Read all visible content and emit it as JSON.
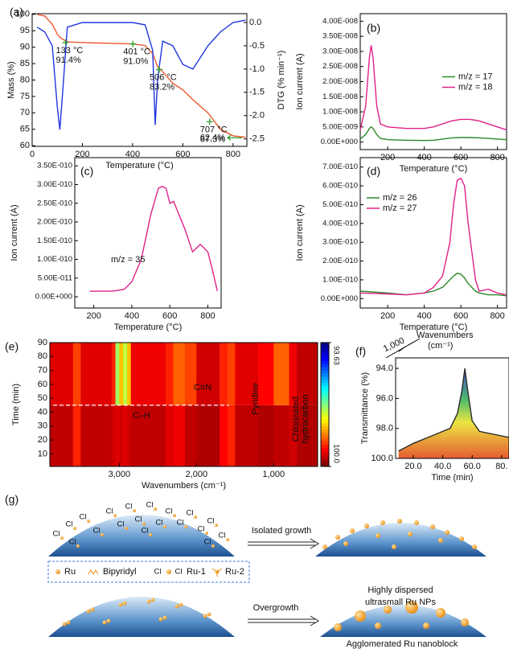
{
  "chart_data": [
    {
      "type": "line",
      "panel_label": "(a)",
      "xlabel": "Temperature (°C)",
      "ylabel": "Mass (%)",
      "y2label": "DTG (% min⁻¹)",
      "x": [
        20,
        50,
        80,
        100,
        110,
        120,
        140,
        200,
        300,
        400,
        450,
        480,
        490,
        500,
        520,
        560,
        600,
        640,
        700,
        750,
        800,
        850
      ],
      "xlim": [
        0,
        855
      ],
      "xticks": [
        0,
        200,
        400,
        600,
        800
      ],
      "ylim": [
        59.8,
        100.2
      ],
      "yticks": [
        60,
        65,
        70,
        75,
        80,
        85,
        90,
        95,
        100
      ],
      "y2lim": [
        -2.66,
        0.19
      ],
      "y2ticks": [
        {
          "value": 0,
          "label": "0.0"
        },
        -0.5,
        {
          "value": -1,
          "label": "-1.0"
        },
        -1.5,
        {
          "value": -2,
          "label": "-2.0"
        },
        -2.5
      ],
      "series": [
        {
          "color": "#f0562a",
          "values": [
            100,
            99.5,
            97,
            94,
            93,
            92.5,
            91.6,
            91.4,
            91.2,
            91.0,
            90.5,
            88,
            86,
            84,
            82.5,
            79,
            77,
            74,
            70,
            65,
            63,
            62.6
          ]
        },
        {
          "color": "#2035e0",
          "axis": "y2",
          "values": [
            -0.1,
            -0.2,
            -0.5,
            -1.8,
            -2.3,
            -1.6,
            -0.1,
            0.0,
            0.0,
            0.0,
            -0.05,
            -0.6,
            -2.2,
            -1.2,
            -0.4,
            -0.5,
            -0.9,
            -1.0,
            -0.5,
            -0.2,
            0.0,
            0.05
          ]
        }
      ],
      "annotation_color": "#2a9d2a",
      "annotations": [
        {
          "x": 133,
          "y": 91.4,
          "x_label": "133 °C",
          "y_label": "91.4%"
        },
        {
          "x": 401,
          "y": 91.0,
          "x_label": "401 °C",
          "y_label": "91.0%"
        },
        {
          "x": 506,
          "y": 83.2,
          "x_label": "506 °C",
          "y_label": "83.2%"
        },
        {
          "x": 707,
          "y": 67.3,
          "x_label": "707 °C",
          "y_label": "67.3%"
        },
        {
          "y": 62.4,
          "y_label": "62.4%"
        }
      ]
    },
    {
      "type": "line",
      "panel_label": "(b)",
      "xlabel": "Temperature (°C)",
      "ylabel": "Ion current (A)",
      "legend": "right",
      "x": [
        50,
        80,
        100,
        110,
        120,
        140,
        160,
        200,
        300,
        400,
        450,
        500,
        550,
        600,
        650,
        700,
        750,
        800,
        850
      ],
      "xlim": [
        50,
        850
      ],
      "xticks": [
        200,
        400,
        600,
        800
      ],
      "ylim": [
        -2.5e-09,
        4.25e-08
      ],
      "yticks": [
        {
          "value": 0,
          "label": "0.00E+000"
        },
        {
          "value": 5e-09,
          "label": "5.00E-009"
        },
        {
          "value": 1e-08,
          "label": "1.00E-008"
        },
        {
          "value": 1.5e-08,
          "label": "1.50E-008"
        },
        {
          "value": 2e-08,
          "label": "2.00E-008"
        },
        {
          "value": 2.5e-08,
          "label": "2.50E-008"
        },
        {
          "value": 3e-08,
          "label": "3.00E-008"
        },
        {
          "value": 3.5e-08,
          "label": "3.50E-008"
        },
        {
          "value": 4e-08,
          "label": "4.00E-008"
        }
      ],
      "series": [
        {
          "name": "m/z = 17",
          "color": "#2a8a2a",
          "values": [
            1e-09,
            2.5e-09,
            4.5e-09,
            5e-09,
            4.5e-09,
            2.5e-09,
            1.2e-09,
            8e-10,
            6e-10,
            5e-10,
            6e-10,
            1e-09,
            1.4e-09,
            1.5e-09,
            1.5e-09,
            1.4e-09,
            1.2e-09,
            1e-09,
            8e-10
          ]
        },
        {
          "name": "m/z = 18",
          "color": "#e0218a",
          "values": [
            4e-09,
            1.2e-08,
            2.8e-08,
            3.2e-08,
            2.8e-08,
            1.2e-08,
            6e-09,
            5e-09,
            4.5e-09,
            4.5e-09,
            5e-09,
            6e-09,
            7e-09,
            7.5e-09,
            7.5e-09,
            7e-09,
            6e-09,
            5e-09,
            4e-09
          ]
        }
      ]
    },
    {
      "type": "line",
      "panel_label": "(c)",
      "xlabel": "Temperature (°C)",
      "ylabel": "Ion current (A)",
      "legend": "lower left",
      "x": [
        180,
        300,
        360,
        400,
        450,
        500,
        540,
        560,
        580,
        600,
        620,
        640,
        680,
        700,
        720,
        760,
        800,
        830,
        850
      ],
      "xlim": [
        100,
        870
      ],
      "xticks": [
        200,
        400,
        600,
        800
      ],
      "ylim": [
        -3e-11,
        3.72e-10
      ],
      "yticks": [
        {
          "value": 0,
          "label": "0.00E+000"
        },
        {
          "value": 5e-11,
          "label": "5.00E-011"
        },
        {
          "value": 1e-10,
          "label": "1.00E-010"
        },
        {
          "value": 1.5e-10,
          "label": "1.50E-010"
        },
        {
          "value": 2e-10,
          "label": "2.00E-010"
        },
        {
          "value": 2.5e-10,
          "label": "2.50E-010"
        },
        {
          "value": 3e-10,
          "label": "3.00E-010"
        },
        {
          "value": 3.5e-10,
          "label": "3.50E-010"
        }
      ],
      "series": [
        {
          "name": "m/z = 35",
          "color": "#e0218a",
          "values": [
            1.5e-11,
            1.5e-11,
            2e-11,
            4e-11,
            1e-10,
            2.2e-10,
            2.9e-10,
            2.95e-10,
            2.9e-10,
            2.5e-10,
            2.55e-10,
            2.3e-10,
            1.8e-10,
            1.5e-10,
            1.2e-10,
            1.4e-10,
            1.2e-10,
            6e-11,
            1.5e-11
          ]
        }
      ]
    },
    {
      "type": "line",
      "panel_label": "(d)",
      "xlabel": "Temperature (°C)",
      "ylabel": "Ion current (A)",
      "legend": "upper left",
      "x": [
        50,
        200,
        300,
        400,
        450,
        500,
        540,
        560,
        580,
        600,
        620,
        640,
        680,
        700,
        750,
        800,
        850
      ],
      "xlim": [
        50,
        850
      ],
      "xticks": [
        200,
        400,
        600,
        800
      ],
      "ylim": [
        -5e-11,
        7.5e-10
      ],
      "yticks": [
        {
          "value": 0,
          "label": "0.00E+000"
        },
        {
          "value": 1e-10,
          "label": "1.00E-010"
        },
        {
          "value": 2e-10,
          "label": "2.00E-010"
        },
        {
          "value": 3e-10,
          "label": "3.00E-010"
        },
        {
          "value": 4e-10,
          "label": "4.00E-010"
        },
        {
          "value": 5e-10,
          "label": "5.00E-010"
        },
        {
          "value": 6e-10,
          "label": "6.00E-010"
        },
        {
          "value": 7e-10,
          "label": "7.00E-010"
        }
      ],
      "series": [
        {
          "name": "m/z = 26",
          "color": "#2a8a2a",
          "values": [
            4e-11,
            3e-11,
            2e-11,
            3e-11,
            4e-11,
            6e-11,
            1e-10,
            1.2e-10,
            1.35e-10,
            1.3e-10,
            1.1e-10,
            8e-11,
            4e-11,
            3e-11,
            2e-11,
            2e-11,
            1.5e-11
          ]
        },
        {
          "name": "m/z = 27",
          "color": "#e0218a",
          "values": [
            3e-11,
            2.5e-11,
            2e-11,
            3e-11,
            6e-11,
            1.2e-10,
            3e-10,
            5e-10,
            6.3e-10,
            6.4e-10,
            6e-10,
            4e-10,
            1e-10,
            4e-11,
            5e-11,
            3e-11,
            2e-11
          ]
        }
      ]
    },
    {
      "type": "heatmap",
      "panel_label": "(e)",
      "xlabel": "Wavenumbers (cm⁻¹)",
      "ylabel": "Time (min)",
      "xlim": [
        3900,
        430
      ],
      "xticks": [
        {
          "value": 3000,
          "label": "3,000"
        },
        {
          "value": 2000,
          "label": "2,000"
        },
        {
          "value": 1000,
          "label": "1,000"
        }
      ],
      "ylim": [
        1,
        90
      ],
      "yticks": [
        10,
        20,
        30,
        40,
        50,
        60,
        70,
        80,
        90
      ],
      "x_edges": [
        3900,
        3600,
        3500,
        3100,
        3050,
        3000,
        2950,
        2900,
        2850,
        2400,
        2300,
        2150,
        2000,
        1700,
        1600,
        1500,
        1200,
        1000,
        800,
        700,
        430
      ],
      "y_edges": [
        1,
        45,
        90
      ],
      "z": [
        [
          99.6,
          99.0,
          99.6,
          99.5,
          99.4,
          99.5,
          99.4,
          99.5,
          99.6,
          99.4,
          99.3,
          99.6,
          99.7,
          99.2,
          99.0,
          99.6,
          99.7,
          99.6,
          99.5,
          99.7
        ],
        [
          99.4,
          98.8,
          99.4,
          99.0,
          97.0,
          98.0,
          97.2,
          98.0,
          99.3,
          99.0,
          98.6,
          98.8,
          99.5,
          99.0,
          98.8,
          99.4,
          99.2,
          98.6,
          99.3,
          99.6
        ]
      ],
      "clim": [
        93.63,
        100
      ],
      "colorbar_ticks": [
        93.63,
        {
          "value": 100,
          "label": "100.0"
        }
      ],
      "annotations": [
        "C–H",
        "C≡N",
        "Pyridine",
        "Chlorinated",
        "hydrocarbon"
      ]
    },
    {
      "type": "line",
      "panel_label": "(f)",
      "xlabel": "Time (min)",
      "ylabel": "Transmittance (%)",
      "x": [
        10,
        20,
        30,
        40,
        45,
        50,
        53,
        55,
        57,
        60,
        65,
        70,
        80,
        85
      ],
      "xlim": [
        8,
        85
      ],
      "xticks": [
        {
          "value": 20,
          "label": "20.0"
        },
        {
          "value": 40,
          "label": "40.0"
        },
        {
          "value": 60,
          "label": "60.0"
        },
        {
          "value": 80,
          "label": "80."
        }
      ],
      "ylim": [
        100,
        93.3
      ],
      "yticks": [
        {
          "value": 94,
          "label": "94.0"
        },
        {
          "value": 96,
          "label": "96.0"
        },
        {
          "value": 98,
          "label": "98.0"
        },
        {
          "value": 100,
          "label": "100.0"
        }
      ],
      "series": [
        {
          "color": "#2a2a2a",
          "values": [
            99.5,
            99.0,
            98.6,
            98.2,
            98.0,
            97.0,
            95.5,
            94.0,
            95.5,
            97.5,
            98.2,
            98.3,
            98.5,
            98.6
          ]
        }
      ],
      "depth_tick": {
        "value": 1000,
        "label": "1,000"
      },
      "depth_label": [
        "Wavenumbers",
        "(cm⁻¹)"
      ]
    }
  ],
  "diagram": {
    "panel_label": "(g)",
    "cl": "Cl",
    "process_1": "Isolated growth",
    "process_2": "Overgrowth",
    "result_1": [
      "Highly dispersed",
      "ultrasmall Ru NPs"
    ],
    "result_2": "Agglomerated Ru nanoblock",
    "legend": {
      "ru": "Ru",
      "bipyridyl": "Bipyridyl",
      "ru1": "Ru-1",
      "ru2": "Ru-2"
    }
  }
}
